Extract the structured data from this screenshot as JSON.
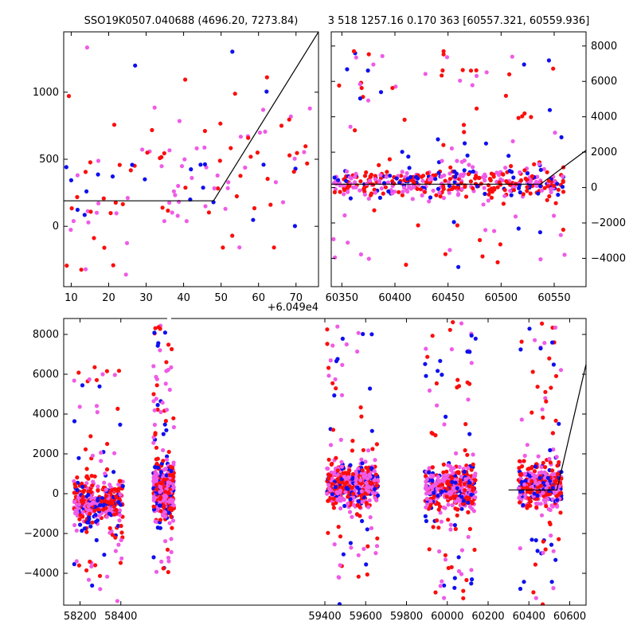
{
  "title_left": "SSO19K0507.040688 (4696.20, 7273.84)",
  "title_right": "3 518 1257.16 0.170 363 [60557.321, 60559.936]",
  "colors": {
    "blue": "#0f0fee",
    "red": "#fc0d0d",
    "pink": "#ef5be6",
    "model": "#000000"
  },
  "chart_data": [
    {
      "name": "panel-top-left",
      "type": "scatter",
      "offset_label": "+6.049e4",
      "xlim": [
        8,
        76
      ],
      "ylim": [
        -450,
        1450
      ],
      "xticks": [
        10,
        20,
        30,
        40,
        50,
        60,
        70
      ],
      "yticks": [
        0,
        500,
        1000
      ],
      "xtick_labels": [
        "10",
        "20",
        "30",
        "40",
        "50",
        "60",
        "70"
      ],
      "ytick_labels": [
        "0",
        "500",
        "1000"
      ],
      "ytick_side": "left",
      "model_line": {
        "x": [
          8,
          48,
          76
        ],
        "y": [
          190,
          190,
          1450
        ]
      },
      "seed": 11,
      "clusters": [
        {
          "x": [
            8,
            74
          ],
          "n": 130,
          "y_center": 360,
          "y_spread": 330,
          "outlier_frac": 0.2,
          "y_out": [
            -400,
            1450
          ],
          "trend": 8
        }
      ]
    },
    {
      "name": "panel-top-right",
      "type": "scatter",
      "xlim": [
        60340,
        60580
      ],
      "ylim": [
        -5600,
        8800
      ],
      "xticks": [
        60350,
        60400,
        60450,
        60500,
        60550
      ],
      "yticks": [
        -4000,
        -2000,
        0,
        2000,
        4000,
        6000,
        8000
      ],
      "xtick_labels": [
        "60350",
        "60400",
        "60450",
        "60500",
        "60550"
      ],
      "ytick_labels": [
        "−4000",
        "−2000",
        "0",
        "2000",
        "4000",
        "6000",
        "8000"
      ],
      "ytick_side": "right",
      "model_line": {
        "x": [
          60340,
          60537,
          60580
        ],
        "y": [
          190,
          190,
          2100
        ]
      },
      "seed": 23,
      "clusters": [
        {
          "x": [
            60342,
            60560
          ],
          "n": 500,
          "y_center": 250,
          "y_spread": 700,
          "outlier_frac": 0.22,
          "y_out": [
            -4600,
            7800
          ],
          "trend": 0
        }
      ]
    },
    {
      "name": "panel-bottom",
      "type": "scatter",
      "xlim": [
        58120,
        60680
      ],
      "ylim": [
        -5600,
        8800
      ],
      "xticks": [
        58200,
        58400,
        59400,
        59600,
        59800,
        60000,
        60200,
        60400,
        60600
      ],
      "yticks": [
        -4000,
        -2000,
        0,
        2000,
        4000,
        6000,
        8000
      ],
      "xtick_labels": [
        "58200",
        "58400",
        "59400",
        "59600",
        "59800",
        "60000",
        "60200",
        "60400",
        "60600"
      ],
      "ytick_labels": [
        "−4000",
        "−2000",
        "0",
        "2000",
        "4000",
        "6000",
        "8000"
      ],
      "ytick_side": "left",
      "model_line": {
        "x": [
          60300,
          60537,
          60680
        ],
        "y": [
          190,
          190,
          6500
        ]
      },
      "seed": 37,
      "clusters": [
        {
          "x": [
            58170,
            58410
          ],
          "n": 420,
          "y_center": -400,
          "y_spread": 900,
          "outlier_frac": 0.18,
          "y_out": [
            -5500,
            6500
          ],
          "trend": 0
        },
        {
          "x": [
            58560,
            58660
          ],
          "n": 460,
          "y_center": 200,
          "y_spread": 1000,
          "outlier_frac": 0.2,
          "y_out": [
            -4000,
            8700
          ],
          "trend": 0
        },
        {
          "x": [
            59410,
            59660
          ],
          "n": 480,
          "y_center": 450,
          "y_spread": 1000,
          "outlier_frac": 0.2,
          "y_out": [
            -5600,
            8400
          ],
          "trend": 0
        },
        {
          "x": [
            59890,
            60140
          ],
          "n": 480,
          "y_center": 250,
          "y_spread": 950,
          "outlier_frac": 0.2,
          "y_out": [
            -5500,
            8800
          ],
          "trend": 0
        },
        {
          "x": [
            60350,
            60560
          ],
          "n": 420,
          "y_center": 300,
          "y_spread": 900,
          "outlier_frac": 0.2,
          "y_out": [
            -5600,
            8600
          ],
          "trend": 0
        }
      ]
    }
  ]
}
